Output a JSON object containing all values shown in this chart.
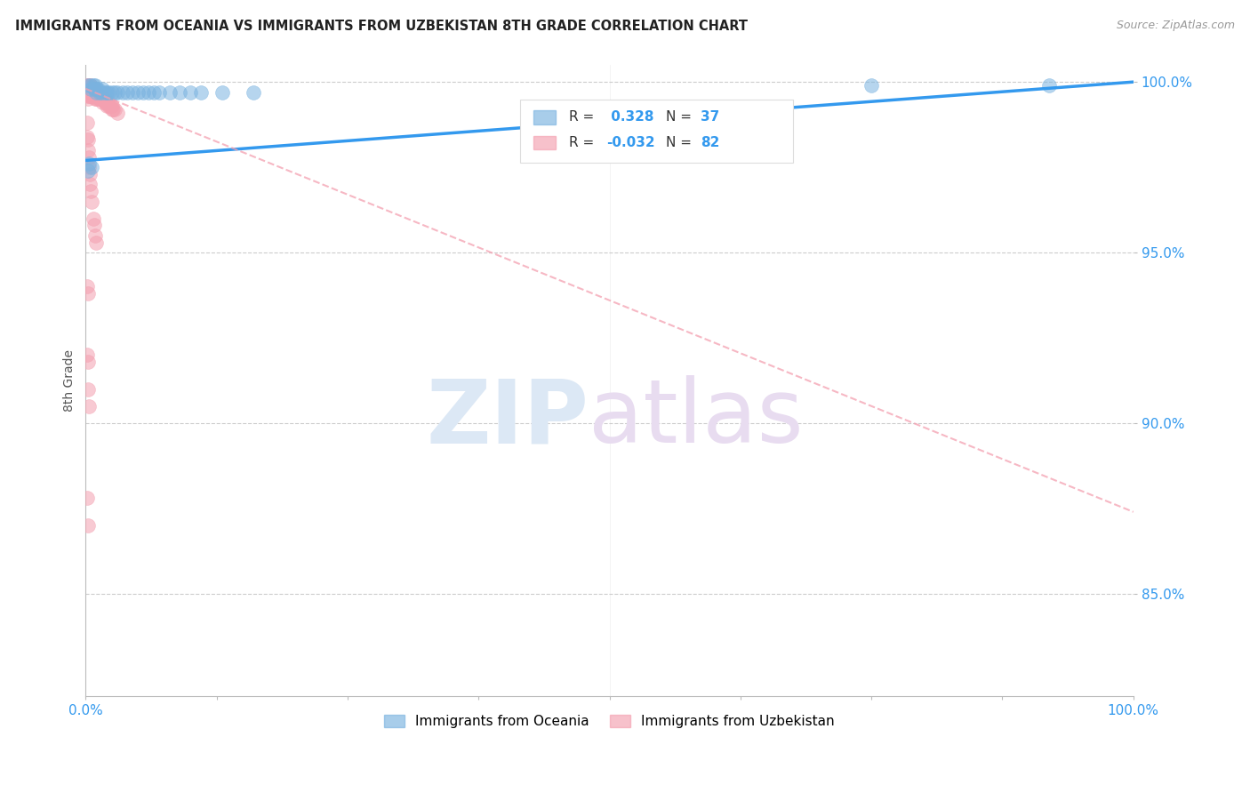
{
  "title": "IMMIGRANTS FROM OCEANIA VS IMMIGRANTS FROM UZBEKISTAN 8TH GRADE CORRELATION CHART",
  "source": "Source: ZipAtlas.com",
  "ylabel": "8th Grade",
  "oceania_color": "#7ab3e0",
  "uzbekistan_color": "#f4a0b0",
  "oceania_R": 0.328,
  "oceania_N": 37,
  "uzbekistan_R": -0.032,
  "uzbekistan_N": 82,
  "legend_label_oceania": "Immigrants from Oceania",
  "legend_label_uzbekistan": "Immigrants from Uzbekistan",
  "x_min": 0.0,
  "x_max": 1.0,
  "y_min": 0.82,
  "y_max": 1.005,
  "y_ticks": [
    0.85,
    0.9,
    0.95,
    1.0
  ],
  "oceania_trend_x0": 0.0,
  "oceania_trend_y0": 0.977,
  "oceania_trend_x1": 1.0,
  "oceania_trend_y1": 1.0,
  "uzbekistan_trend_x0": 0.0,
  "uzbekistan_trend_y0": 0.998,
  "uzbekistan_trend_x1": 1.0,
  "uzbekistan_trend_y1": 0.874,
  "oceania_x": [
    0.002,
    0.005,
    0.005,
    0.007,
    0.008,
    0.009,
    0.01,
    0.01,
    0.012,
    0.013,
    0.015,
    0.016,
    0.018,
    0.02,
    0.022,
    0.025,
    0.028,
    0.03,
    0.035,
    0.04,
    0.045,
    0.05,
    0.055,
    0.06,
    0.065,
    0.07,
    0.08,
    0.09,
    0.1,
    0.11,
    0.13,
    0.16,
    0.003,
    0.006,
    0.75,
    0.92,
    0.002
  ],
  "oceania_y": [
    0.999,
    0.999,
    0.998,
    0.999,
    0.998,
    0.999,
    0.998,
    0.997,
    0.998,
    0.997,
    0.997,
    0.998,
    0.997,
    0.997,
    0.997,
    0.997,
    0.997,
    0.997,
    0.997,
    0.997,
    0.997,
    0.997,
    0.997,
    0.997,
    0.997,
    0.997,
    0.997,
    0.997,
    0.997,
    0.997,
    0.997,
    0.997,
    0.976,
    0.975,
    0.999,
    0.999,
    0.974
  ],
  "uzbekistan_x": [
    0.001,
    0.001,
    0.001,
    0.002,
    0.002,
    0.002,
    0.002,
    0.002,
    0.003,
    0.003,
    0.003,
    0.003,
    0.004,
    0.004,
    0.004,
    0.005,
    0.005,
    0.005,
    0.005,
    0.006,
    0.006,
    0.006,
    0.007,
    0.007,
    0.007,
    0.008,
    0.008,
    0.008,
    0.009,
    0.009,
    0.009,
    0.01,
    0.01,
    0.01,
    0.011,
    0.011,
    0.012,
    0.012,
    0.013,
    0.013,
    0.014,
    0.015,
    0.015,
    0.016,
    0.016,
    0.017,
    0.018,
    0.018,
    0.019,
    0.02,
    0.02,
    0.021,
    0.022,
    0.023,
    0.024,
    0.025,
    0.025,
    0.026,
    0.028,
    0.03,
    0.001,
    0.001,
    0.002,
    0.002,
    0.003,
    0.003,
    0.004,
    0.004,
    0.005,
    0.006,
    0.007,
    0.008,
    0.009,
    0.01,
    0.001,
    0.002,
    0.001,
    0.002,
    0.002,
    0.003,
    0.001,
    0.002
  ],
  "uzbekistan_y": [
    0.999,
    0.998,
    0.997,
    0.999,
    0.998,
    0.997,
    0.996,
    0.995,
    0.999,
    0.998,
    0.997,
    0.996,
    0.999,
    0.998,
    0.997,
    0.999,
    0.998,
    0.997,
    0.996,
    0.998,
    0.997,
    0.996,
    0.998,
    0.997,
    0.996,
    0.998,
    0.997,
    0.996,
    0.997,
    0.996,
    0.995,
    0.997,
    0.996,
    0.995,
    0.997,
    0.996,
    0.996,
    0.995,
    0.996,
    0.995,
    0.995,
    0.996,
    0.995,
    0.995,
    0.994,
    0.995,
    0.995,
    0.994,
    0.994,
    0.994,
    0.993,
    0.994,
    0.993,
    0.993,
    0.993,
    0.993,
    0.992,
    0.992,
    0.992,
    0.991,
    0.988,
    0.984,
    0.983,
    0.98,
    0.978,
    0.975,
    0.973,
    0.97,
    0.968,
    0.965,
    0.96,
    0.958,
    0.955,
    0.953,
    0.94,
    0.938,
    0.92,
    0.918,
    0.91,
    0.905,
    0.878,
    0.87
  ]
}
